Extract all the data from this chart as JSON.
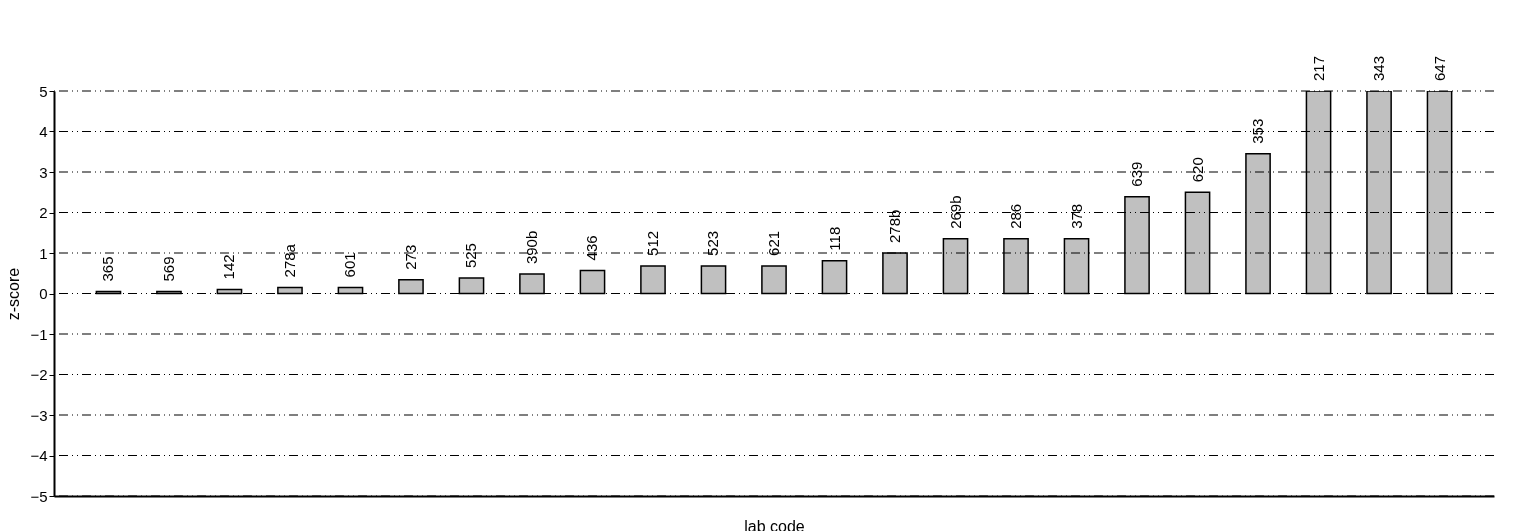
{
  "chart_data": {
    "type": "bar",
    "xlabel": "lab code",
    "ylabel": "z-score",
    "categories": [
      "365",
      "569",
      "142",
      "278a",
      "601",
      "273",
      "525",
      "390b",
      "436",
      "512",
      "523",
      "621",
      "118",
      "278b",
      "269b",
      "286",
      "378",
      "639",
      "620",
      "353",
      "217",
      "343",
      "647"
    ],
    "values": [
      0.05,
      0.05,
      0.1,
      0.15,
      0.15,
      0.34,
      0.38,
      0.48,
      0.57,
      0.68,
      0.68,
      0.68,
      0.81,
      1.0,
      1.35,
      1.35,
      1.35,
      2.39,
      2.5,
      3.45,
      5,
      5,
      5
    ],
    "color": "#c0c0c0",
    "ylim": [
      -5,
      5
    ],
    "yticks": [
      -5,
      -4,
      -3,
      -2,
      -1,
      0,
      1,
      2,
      3,
      4,
      5
    ],
    "grid": "y",
    "tick_labels": "y"
  }
}
